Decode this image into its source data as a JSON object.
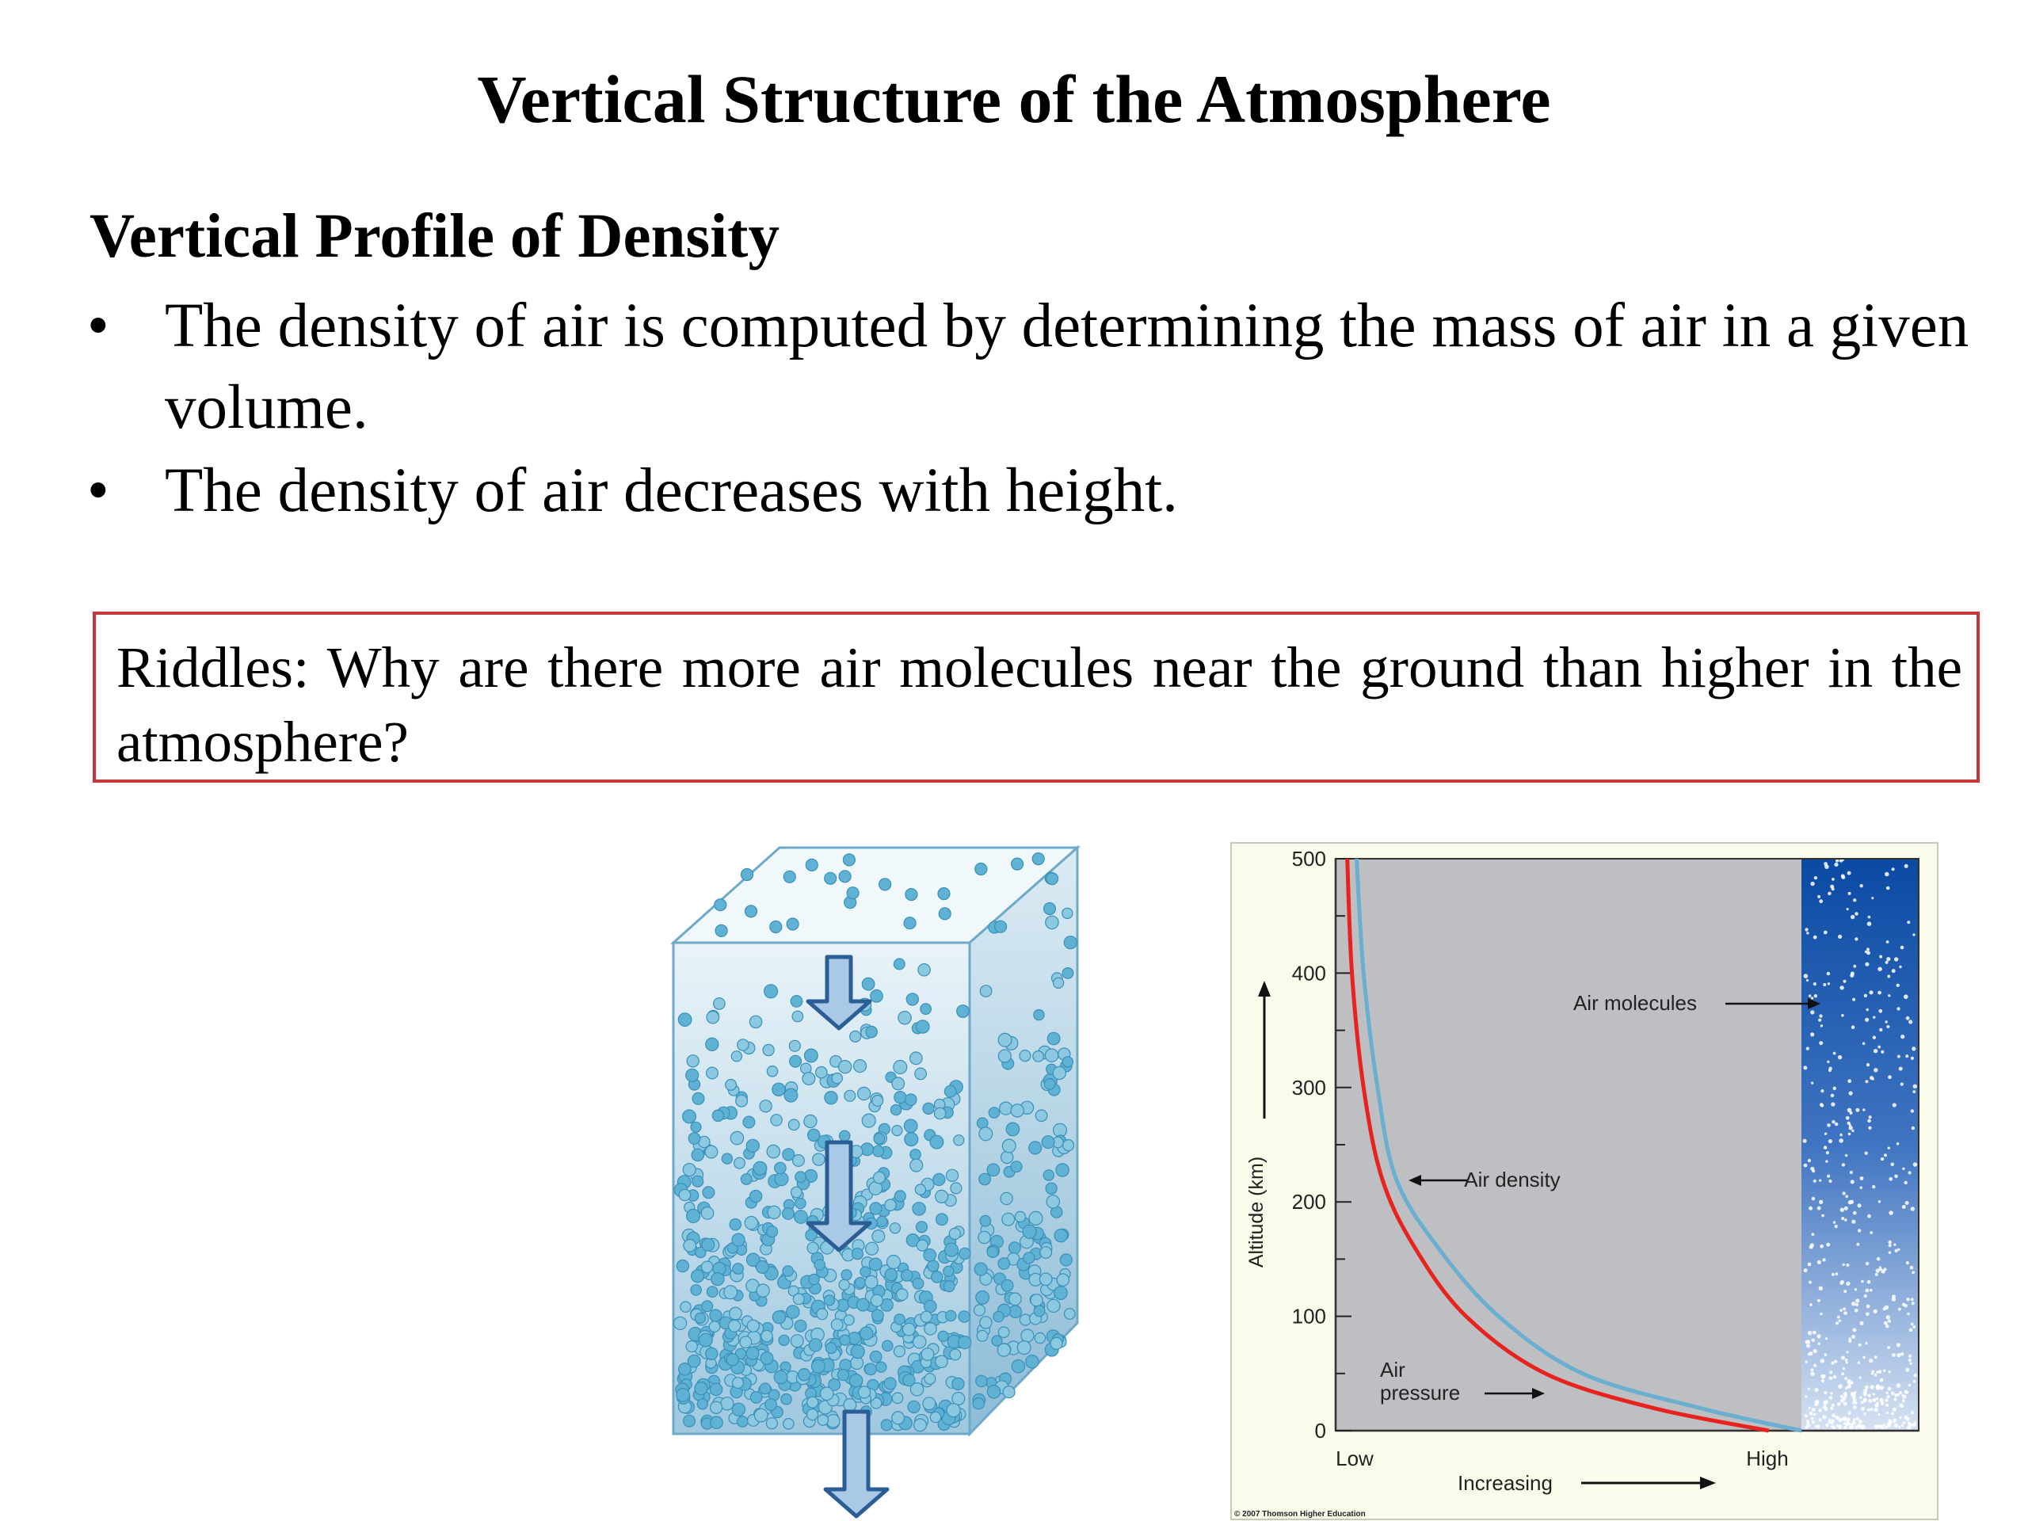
{
  "slide": {
    "title": "Vertical Structure of the Atmosphere",
    "subtitle": "Vertical Profile of Density",
    "bullets": [
      {
        "marker": "•",
        "text": "The density of air is computed by determining the mass of air in a given volume."
      },
      {
        "marker": "•",
        "text": "The density of air decreases with height."
      }
    ],
    "riddle": "Riddles: Why are there more air molecules near the ground than higher in the atmosphere?"
  },
  "figure_cube": {
    "icon_names": [
      "air-column-cube-icon",
      "down-arrow-icon"
    ]
  },
  "chart_data": {
    "type": "line",
    "ylabel": "Altitude (km)",
    "ylim": [
      0,
      500
    ],
    "yticks": [
      0,
      100,
      200,
      300,
      400,
      500
    ],
    "xlabel": "Increasing",
    "x_tick_labels": [
      "Low",
      "High"
    ],
    "series": [
      {
        "name": "Air pressure",
        "color": "#e8231f",
        "points": [
          [
            0.93,
            0
          ],
          [
            0.68,
            20
          ],
          [
            0.45,
            50
          ],
          [
            0.28,
            100
          ],
          [
            0.17,
            160
          ],
          [
            0.1,
            220
          ],
          [
            0.06,
            300
          ],
          [
            0.035,
            400
          ],
          [
            0.025,
            500
          ]
        ]
      },
      {
        "name": "Air density",
        "color": "#6aaed0",
        "points": [
          [
            1.0,
            0
          ],
          [
            0.78,
            20
          ],
          [
            0.53,
            50
          ],
          [
            0.35,
            100
          ],
          [
            0.22,
            160
          ],
          [
            0.13,
            220
          ],
          [
            0.09,
            300
          ],
          [
            0.06,
            400
          ],
          [
            0.045,
            500
          ]
        ]
      }
    ],
    "annotations": [
      "Air molecules",
      "Air density",
      "Air pressure"
    ],
    "credit": "© 2007 Thomson Higher Education",
    "colors": {
      "plot_bg": "#bdbfc2",
      "frame_bg": "#fbfbec",
      "column_top": "#0d4fa8",
      "column_bottom": "#c7d8ee"
    }
  }
}
